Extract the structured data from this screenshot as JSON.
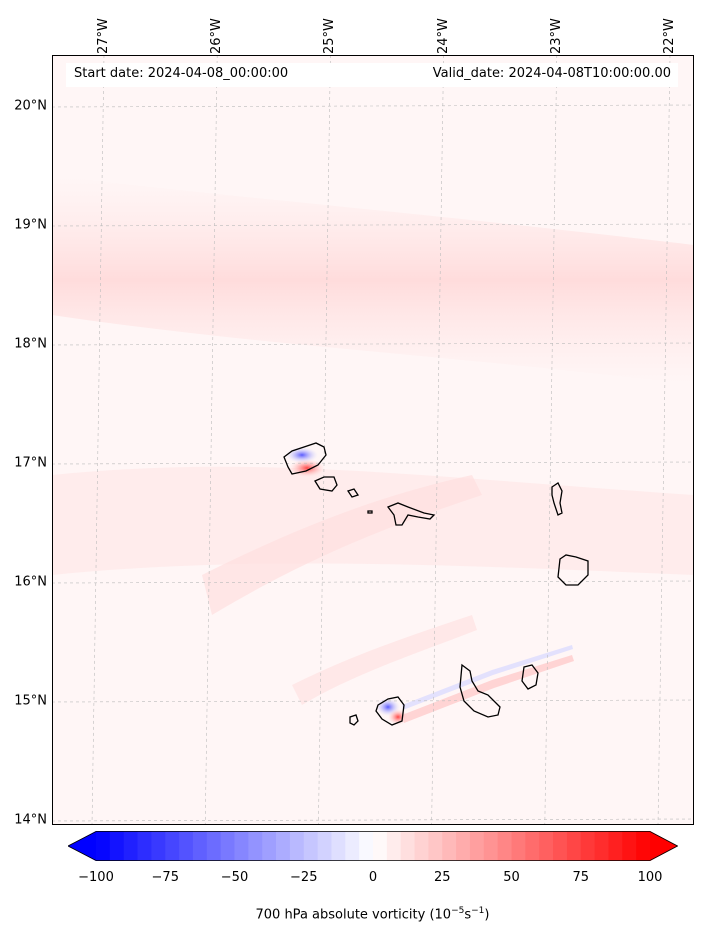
{
  "map": {
    "start_date": "Start date: 2024-04-08_00:00:00",
    "valid_date": "Valid_date: 2024-04-08T10:00:00.00",
    "lat_labels": [
      {
        "text": "20°N",
        "lat": 20.0
      },
      {
        "text": "19°N",
        "lat": 19.0
      },
      {
        "text": "18°N",
        "lat": 18.0
      },
      {
        "text": "17°N",
        "lat": 17.0
      },
      {
        "text": "16°N",
        "lat": 16.0
      },
      {
        "text": "15°N",
        "lat": 15.0
      },
      {
        "text": "14°N",
        "lat": 14.0
      }
    ],
    "lon_labels": [
      {
        "text": "27°W",
        "lon": -27.0
      },
      {
        "text": "26°W",
        "lon": -26.0
      },
      {
        "text": "25°W",
        "lon": -25.0
      },
      {
        "text": "24°W",
        "lon": -24.0
      },
      {
        "text": "23°W",
        "lon": -23.0
      },
      {
        "text": "22°W",
        "lon": -22.0
      }
    ],
    "colors": {
      "negative": "#0000ff",
      "neutral": "#ffffff",
      "positive": "#ff0000",
      "gridline": "#cccccc",
      "coast": "#000000"
    }
  },
  "colorbar": {
    "ticks": [
      "−100",
      "−75",
      "−50",
      "−25",
      "0",
      "25",
      "50",
      "75",
      "100"
    ],
    "tick_values": [
      -100,
      -75,
      -50,
      -25,
      0,
      25,
      50,
      75,
      100
    ],
    "label_main": "700 hPa absolute vorticity (10",
    "label_exp1": "−5",
    "label_mid": "s",
    "label_exp2": "−1",
    "label_end": ")"
  }
}
